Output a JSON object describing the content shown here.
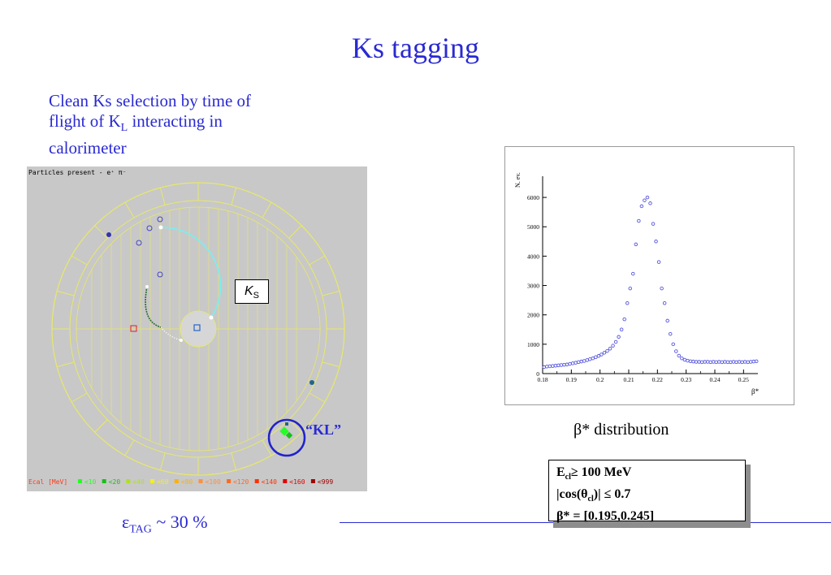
{
  "slide": {
    "title": "Ks tagging",
    "intro_line1": "Clean Ks selection  by time of",
    "intro_line2a": "flight of K",
    "intro_line2_sub": "L",
    "intro_line2b": "  interacting  in",
    "intro_line3": "calorimeter",
    "efficiency_symbol": "ε",
    "efficiency_sub": "TAG",
    "efficiency_value": " ~ 30 %"
  },
  "event_display": {
    "header": "Particles present - e⁺   π⁻",
    "ks_label_main": "K",
    "ks_label_sub": "S",
    "kl_label": "“KL”",
    "legend": [
      {
        "label": "Ecal [MeV]",
        "color": "#ff3a1a"
      },
      {
        "label": "<10",
        "color": "#22ff22"
      },
      {
        "label": "<20",
        "color": "#18c018"
      },
      {
        "label": "<40",
        "color": "#b0e020"
      },
      {
        "label": "<60",
        "color": "#f0f020"
      },
      {
        "label": "<80",
        "color": "#ffb000"
      },
      {
        "label": "<100",
        "color": "#ff9040"
      },
      {
        "label": "<120",
        "color": "#ff6a20"
      },
      {
        "label": "<140",
        "color": "#ff3000"
      },
      {
        "label": "<160",
        "color": "#e00000"
      },
      {
        "label": "<999",
        "color": "#a00000"
      }
    ]
  },
  "plot": {
    "caption_symbol": "β",
    "caption_rest": "*  distribution",
    "chart_data": {
      "type": "scatter",
      "xlabel": "β*",
      "ylabel": "N. ev.",
      "xlim": [
        0.18,
        0.255
      ],
      "ylim": [
        0,
        6500
      ],
      "xticks": [
        0.18,
        0.19,
        0.2,
        0.21,
        0.22,
        0.23,
        0.24,
        0.25
      ],
      "xtick_labels": [
        "0.18",
        "0.19",
        "0.2",
        "0.21",
        "0.22",
        "0.23",
        "0.24",
        "0.25"
      ],
      "yticks": [
        0,
        1000,
        2000,
        3000,
        4000,
        5000,
        6000
      ],
      "ytick_labels": [
        "0",
        "1000",
        "2000",
        "3000",
        "4000",
        "5000",
        "6000"
      ],
      "marker_color": "#5555dd",
      "x": [
        0.1805,
        0.1815,
        0.1825,
        0.1835,
        0.1845,
        0.1855,
        0.1865,
        0.1875,
        0.1885,
        0.1895,
        0.1905,
        0.1915,
        0.1925,
        0.1935,
        0.1945,
        0.1955,
        0.1965,
        0.1975,
        0.1985,
        0.1995,
        0.2005,
        0.2015,
        0.2025,
        0.2035,
        0.2045,
        0.2055,
        0.2065,
        0.2075,
        0.2085,
        0.2095,
        0.2105,
        0.2115,
        0.2125,
        0.2135,
        0.2145,
        0.2155,
        0.2165,
        0.2175,
        0.2185,
        0.2195,
        0.2205,
        0.2215,
        0.2225,
        0.2235,
        0.2245,
        0.2255,
        0.2265,
        0.2275,
        0.2285,
        0.2295,
        0.2305,
        0.2315,
        0.2325,
        0.2335,
        0.2345,
        0.2355,
        0.2365,
        0.2375,
        0.2385,
        0.2395,
        0.2405,
        0.2415,
        0.2425,
        0.2435,
        0.2445,
        0.2455,
        0.2465,
        0.2475,
        0.2485,
        0.2495,
        0.2505,
        0.2515,
        0.2525,
        0.2535,
        0.2545
      ],
      "y": [
        220,
        240,
        250,
        260,
        270,
        280,
        290,
        300,
        310,
        330,
        350,
        370,
        390,
        410,
        430,
        460,
        490,
        520,
        560,
        600,
        650,
        710,
        770,
        850,
        950,
        1080,
        1250,
        1500,
        1850,
        2400,
        2900,
        3400,
        4400,
        5200,
        5700,
        5900,
        6000,
        5800,
        5100,
        4500,
        3800,
        2900,
        2400,
        1800,
        1350,
        1000,
        760,
        610,
        520,
        470,
        440,
        420,
        410,
        400,
        400,
        390,
        400,
        400,
        390,
        400,
        390,
        400,
        390,
        400,
        390,
        390,
        400,
        390,
        400,
        390,
        400,
        390,
        400,
        410,
        420
      ]
    }
  },
  "cuts": {
    "line1_a": "E",
    "line1_sub": "cl",
    "line1_b": "≥ 100 MeV",
    "line2_a": "|cos(θ",
    "line2_sub": "cl",
    "line2_b": ")| ≤ 0.7",
    "line3": "β* = [0.195,0.245]"
  }
}
